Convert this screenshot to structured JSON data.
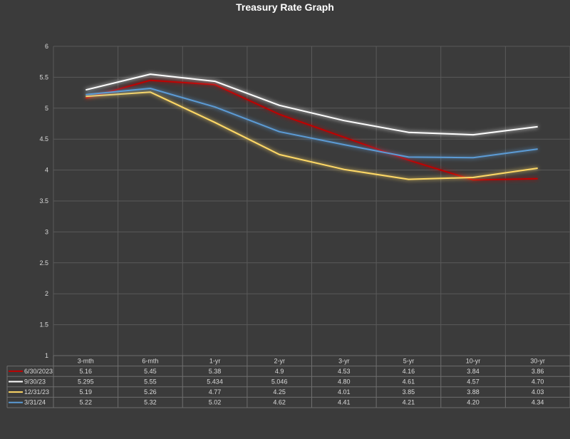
{
  "chart_data": {
    "type": "line",
    "title": "Treasury Rate Graph",
    "categories": [
      "3-mth",
      "6-mth",
      "1-yr",
      "2-yr",
      "3-yr",
      "5-yr",
      "10-yr",
      "30-yr"
    ],
    "ylim": [
      1,
      6
    ],
    "yticks": [
      "1",
      "1.5",
      "2",
      "2.5",
      "3",
      "3.5",
      "4",
      "4.5",
      "5",
      "5.5",
      "6"
    ],
    "grid": true,
    "legend": "data-table-below",
    "series": [
      {
        "name": "6/30/2023",
        "color": "#c00000",
        "values": [
          5.16,
          5.45,
          5.38,
          4.9,
          4.53,
          4.16,
          3.84,
          3.86
        ],
        "labels": [
          "5.16",
          "5.45",
          "5.38",
          "4.9",
          "4.53",
          "4.16",
          "3.84",
          "3.86"
        ]
      },
      {
        "name": "9/30/23",
        "color": "#ffffff",
        "values": [
          5.295,
          5.55,
          5.434,
          5.046,
          4.8,
          4.61,
          4.57,
          4.7
        ],
        "labels": [
          "5.295",
          "5.55",
          "5.434",
          "5.046",
          "4.80",
          "4.61",
          "4.57",
          "4.70"
        ]
      },
      {
        "name": "12/31/23",
        "color": "#ffd966",
        "values": [
          5.19,
          5.26,
          4.77,
          4.25,
          4.01,
          3.85,
          3.88,
          4.03
        ],
        "labels": [
          "5.19",
          "5.26",
          "4.77",
          "4.25",
          "4.01",
          "3.85",
          "3.88",
          "4.03"
        ]
      },
      {
        "name": "3/31/24",
        "color": "#5b9bd5",
        "values": [
          5.22,
          5.32,
          5.02,
          4.62,
          4.41,
          4.21,
          4.2,
          4.34
        ],
        "labels": [
          "5.22",
          "5.32",
          "5.02",
          "4.62",
          "4.41",
          "4.21",
          "4.20",
          "4.34"
        ]
      }
    ]
  }
}
